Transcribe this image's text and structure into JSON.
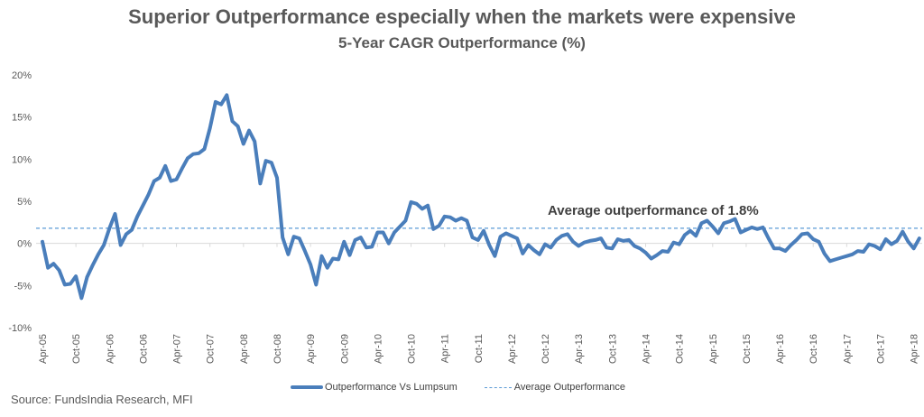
{
  "chart_data": {
    "type": "line",
    "title": "Superior Outperformance especially when the markets were expensive",
    "subtitle": "5-Year CAGR Outperformance (%)",
    "xlabel": "",
    "ylabel": "",
    "ylim": [
      -10,
      20
    ],
    "yticks": [
      20,
      15,
      10,
      5,
      0,
      -5,
      -10
    ],
    "ytick_labels": [
      "20%",
      "15%",
      "10%",
      "5%",
      "0%",
      "-5%",
      "-10%"
    ],
    "x_start": "Apr-05",
    "x_frequency": "monthly",
    "xtick_labels": [
      "Apr-05",
      "Oct-05",
      "Apr-06",
      "Oct-06",
      "Apr-07",
      "Oct-07",
      "Apr-08",
      "Oct-08",
      "Apr-09",
      "Oct-09",
      "Apr-10",
      "Oct-10",
      "Apr-11",
      "Oct-11",
      "Apr-12",
      "Oct-12",
      "Apr-13",
      "Oct-13",
      "Apr-14",
      "Oct-14",
      "Apr-15",
      "Oct-15",
      "Apr-16",
      "Oct-16",
      "Apr-17",
      "Oct-17",
      "Apr-18"
    ],
    "grid": false,
    "legend_position": "bottom",
    "series": [
      {
        "name": "Outperformance Vs Lumpsum",
        "style": "solid",
        "color": "#4a7ebb",
        "values": [
          0.2,
          -2.9,
          -2.4,
          -3.2,
          -4.9,
          -4.8,
          -3.9,
          -6.5,
          -4.0,
          -2.6,
          -1.3,
          -0.2,
          1.8,
          3.5,
          -0.2,
          1.1,
          1.6,
          3.2,
          4.5,
          5.8,
          7.4,
          7.8,
          9.2,
          7.4,
          7.6,
          8.9,
          10.1,
          10.6,
          10.7,
          11.2,
          13.7,
          16.8,
          16.5,
          17.6,
          14.5,
          13.9,
          11.8,
          13.4,
          12.1,
          7.1,
          9.8,
          9.6,
          7.8,
          0.7,
          -1.3,
          0.8,
          0.6,
          -0.9,
          -2.5,
          -4.9,
          -1.5,
          -2.9,
          -1.8,
          -1.9,
          0.2,
          -1.4,
          0.4,
          0.7,
          -0.5,
          -0.4,
          1.3,
          1.3,
          0.0,
          1.3,
          2.0,
          2.7,
          4.9,
          4.7,
          4.1,
          4.5,
          1.7,
          2.1,
          3.2,
          3.1,
          2.7,
          3.0,
          2.7,
          0.7,
          0.4,
          1.5,
          -0.2,
          -1.5,
          0.8,
          1.2,
          0.9,
          0.6,
          -1.2,
          -0.2,
          -0.8,
          -1.3,
          -0.1,
          -0.5,
          0.4,
          0.9,
          1.1,
          0.2,
          -0.3,
          0.1,
          0.3,
          0.4,
          0.6,
          -0.5,
          -0.6,
          0.5,
          0.3,
          0.4,
          -0.3,
          -0.6,
          -1.1,
          -1.8,
          -1.4,
          -0.9,
          -1.0,
          0.1,
          -0.1,
          1.0,
          1.5,
          0.9,
          2.4,
          2.7,
          2.0,
          1.2,
          2.4,
          2.6,
          2.9,
          1.3,
          1.6,
          1.9,
          1.7,
          1.9,
          0.6,
          -0.6,
          -0.6,
          -0.9,
          -0.2,
          0.4,
          1.1,
          1.2,
          0.5,
          0.2,
          -1.2,
          -2.1,
          -1.9,
          -1.7,
          -1.5,
          -1.3,
          -0.9,
          -1.0,
          -0.1,
          -0.3,
          -0.7,
          0.5,
          -0.1,
          0.3,
          1.4,
          0.2,
          -0.6,
          0.6
        ]
      },
      {
        "name": "Average Outperformance",
        "style": "dashed",
        "color": "#5b9bd5",
        "value": 1.8
      }
    ],
    "annotations": [
      {
        "text": "Average outperformance of 1.8%",
        "near": "average line, center-right"
      }
    ]
  },
  "source": "Source: FundsIndia Research, MFI"
}
